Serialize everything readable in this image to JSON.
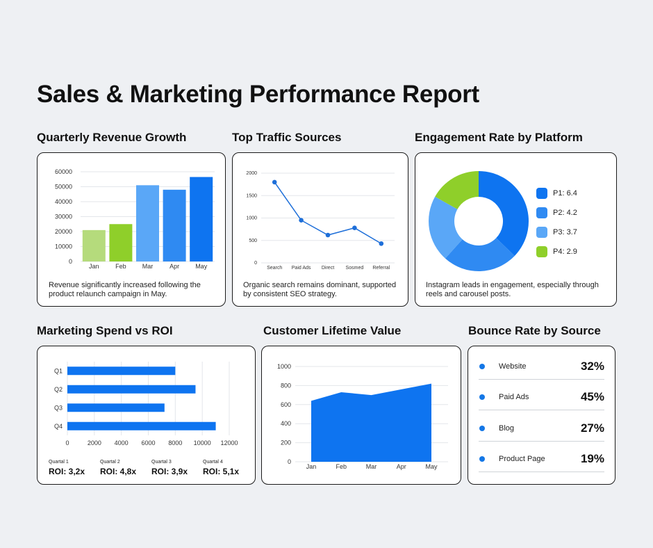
{
  "title": "Sales & Marketing Performance Report",
  "colors": {
    "blue": "#0e74f0",
    "lightblue": "#5aa7f7",
    "midblue": "#2f8af2",
    "green": "#8fcf2a",
    "lightgreen": "#b5db7c",
    "linegray": "#e3e6ea"
  },
  "sections": {
    "revenue": {
      "title": "Quarterly Revenue Growth",
      "caption": "Revenue significantly increased following the product relaunch campaign in May."
    },
    "traffic": {
      "title": "Top Traffic Sources",
      "caption": "Organic search remains dominant, supported by consistent SEO strategy."
    },
    "engagement": {
      "title": "Engagement Rate by Platform",
      "caption": "Instagram leads in engagement, especially through reels and carousel posts."
    },
    "spend": {
      "title": "Marketing Spend vs ROI",
      "roi": [
        {
          "quarter": "Quartal 1",
          "value": "ROI: 3,2x"
        },
        {
          "quarter": "Quartal 2",
          "value": "ROI: 4,8x"
        },
        {
          "quarter": "Quartal 3",
          "value": "ROI: 3,9x"
        },
        {
          "quarter": "Quartal 4",
          "value": "ROI: 5,1x"
        }
      ]
    },
    "clv": {
      "title": "Customer Lifetime Value"
    },
    "bounce": {
      "title": "Bounce Rate by Source",
      "items": [
        {
          "label": "Website",
          "value": "32%"
        },
        {
          "label": "Paid Ads",
          "value": "45%"
        },
        {
          "label": "Blog",
          "value": "27%"
        },
        {
          "label": "Product Page",
          "value": "19%"
        }
      ]
    }
  },
  "chart_data": [
    {
      "id": "revenue",
      "type": "bar",
      "categories": [
        "Jan",
        "Feb",
        "Mar",
        "Apr",
        "May"
      ],
      "values": [
        21000,
        25000,
        51000,
        48000,
        56500
      ],
      "bar_colors": [
        "#b5db7c",
        "#8fcf2a",
        "#5aa7f7",
        "#2f8af2",
        "#0e74f0"
      ],
      "ylim": [
        0,
        60000
      ],
      "yticks": [
        0,
        10000,
        20000,
        30000,
        40000,
        50000,
        60000
      ]
    },
    {
      "id": "traffic",
      "type": "line",
      "categories": [
        "Search",
        "Paid Ads",
        "Direct",
        "Sosmed",
        "Referral"
      ],
      "values": [
        1800,
        950,
        620,
        780,
        430
      ],
      "ylim": [
        0,
        2000
      ],
      "yticks": [
        0,
        500,
        1000,
        1500,
        2000
      ]
    },
    {
      "id": "engagement",
      "type": "pie",
      "labels": [
        "P1: 6.4",
        "P2: 4.2",
        "P3: 3.7",
        "P4: 2.9"
      ],
      "values": [
        6.4,
        4.2,
        3.7,
        2.9
      ],
      "slice_colors": [
        "#0e74f0",
        "#2f8af2",
        "#5aa7f7",
        "#8fcf2a"
      ]
    },
    {
      "id": "spend",
      "type": "bar",
      "orientation": "horizontal",
      "categories": [
        "Q1",
        "Q2",
        "Q3",
        "Q4"
      ],
      "values": [
        8000,
        9500,
        7200,
        11000
      ],
      "xlim": [
        0,
        12000
      ],
      "xticks": [
        0,
        2000,
        4000,
        6000,
        8000,
        10000,
        12000
      ]
    },
    {
      "id": "clv",
      "type": "area",
      "categories": [
        "Jan",
        "Feb",
        "Mar",
        "Apr",
        "May"
      ],
      "values": [
        640,
        730,
        700,
        760,
        820
      ],
      "ylim": [
        0,
        1000
      ],
      "yticks": [
        0,
        200,
        400,
        600,
        800,
        1000
      ]
    }
  ]
}
